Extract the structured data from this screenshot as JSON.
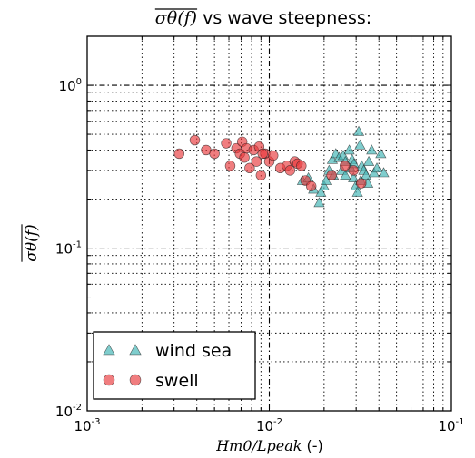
{
  "chart_data": {
    "type": "scatter",
    "title": {
      "math_part": "σθ(f)",
      "text_part": " vs wave steepness:"
    },
    "xlabel": {
      "math_part": "Hm0/Lpeak",
      "unit": " (-)"
    },
    "ylabel": "σθ(f)",
    "xscale": "log",
    "yscale": "log",
    "xlim": [
      0.001,
      0.1
    ],
    "ylim": [
      0.01,
      2.0
    ],
    "grid": true,
    "legend_position": "lower-left",
    "x_ticks": [
      {
        "value": 0.001,
        "base": "10",
        "exp": "-3"
      },
      {
        "value": 0.01,
        "base": "10",
        "exp": "-2"
      },
      {
        "value": 0.1,
        "base": "10",
        "exp": "-1"
      }
    ],
    "y_ticks": [
      {
        "value": 0.01,
        "base": "10",
        "exp": "-2"
      },
      {
        "value": 0.1,
        "base": "10",
        "exp": "-1"
      },
      {
        "value": 1,
        "base": "10",
        "exp": "0"
      }
    ],
    "series": [
      {
        "name": "wind sea",
        "marker": "triangle",
        "color": "#48b8b8",
        "points": [
          [
            0.0152,
            0.26
          ],
          [
            0.0164,
            0.27
          ],
          [
            0.0175,
            0.23
          ],
          [
            0.0188,
            0.19
          ],
          [
            0.0192,
            0.22
          ],
          [
            0.02,
            0.24
          ],
          [
            0.0205,
            0.26
          ],
          [
            0.0213,
            0.3
          ],
          [
            0.0222,
            0.35
          ],
          [
            0.0232,
            0.38
          ],
          [
            0.0242,
            0.36
          ],
          [
            0.025,
            0.3
          ],
          [
            0.0255,
            0.37
          ],
          [
            0.0262,
            0.28
          ],
          [
            0.0275,
            0.4
          ],
          [
            0.028,
            0.31
          ],
          [
            0.0285,
            0.35
          ],
          [
            0.029,
            0.27
          ],
          [
            0.0298,
            0.24
          ],
          [
            0.031,
            0.52
          ],
          [
            0.0315,
            0.43
          ],
          [
            0.0322,
            0.32
          ],
          [
            0.033,
            0.3
          ],
          [
            0.034,
            0.28
          ],
          [
            0.0352,
            0.34
          ],
          [
            0.0365,
            0.4
          ],
          [
            0.0376,
            0.29
          ],
          [
            0.039,
            0.31
          ],
          [
            0.041,
            0.38
          ],
          [
            0.0425,
            0.29
          ],
          [
            0.0262,
            0.34
          ],
          [
            0.0292,
            0.33
          ],
          [
            0.0318,
            0.26
          ],
          [
            0.0348,
            0.25
          ],
          [
            0.0225,
            0.28
          ],
          [
            0.0305,
            0.22
          ]
        ]
      },
      {
        "name": "swell",
        "marker": "circle",
        "color": "#e8383a",
        "points": [
          [
            0.0032,
            0.38
          ],
          [
            0.0039,
            0.46
          ],
          [
            0.0045,
            0.4
          ],
          [
            0.005,
            0.38
          ],
          [
            0.0058,
            0.44
          ],
          [
            0.0061,
            0.32
          ],
          [
            0.0066,
            0.41
          ],
          [
            0.0069,
            0.38
          ],
          [
            0.0071,
            0.45
          ],
          [
            0.0073,
            0.36
          ],
          [
            0.0075,
            0.41
          ],
          [
            0.0078,
            0.31
          ],
          [
            0.0082,
            0.4
          ],
          [
            0.0085,
            0.34
          ],
          [
            0.0088,
            0.42
          ],
          [
            0.009,
            0.28
          ],
          [
            0.0095,
            0.38
          ],
          [
            0.01,
            0.34
          ],
          [
            0.0105,
            0.37
          ],
          [
            0.0115,
            0.31
          ],
          [
            0.0125,
            0.32
          ],
          [
            0.013,
            0.3
          ],
          [
            0.0138,
            0.34
          ],
          [
            0.0143,
            0.33
          ],
          [
            0.015,
            0.32
          ],
          [
            0.0158,
            0.26
          ],
          [
            0.017,
            0.24
          ],
          [
            0.022,
            0.28
          ],
          [
            0.026,
            0.32
          ],
          [
            0.029,
            0.3
          ],
          [
            0.032,
            0.25
          ],
          [
            0.0092,
            0.38
          ]
        ]
      }
    ]
  }
}
